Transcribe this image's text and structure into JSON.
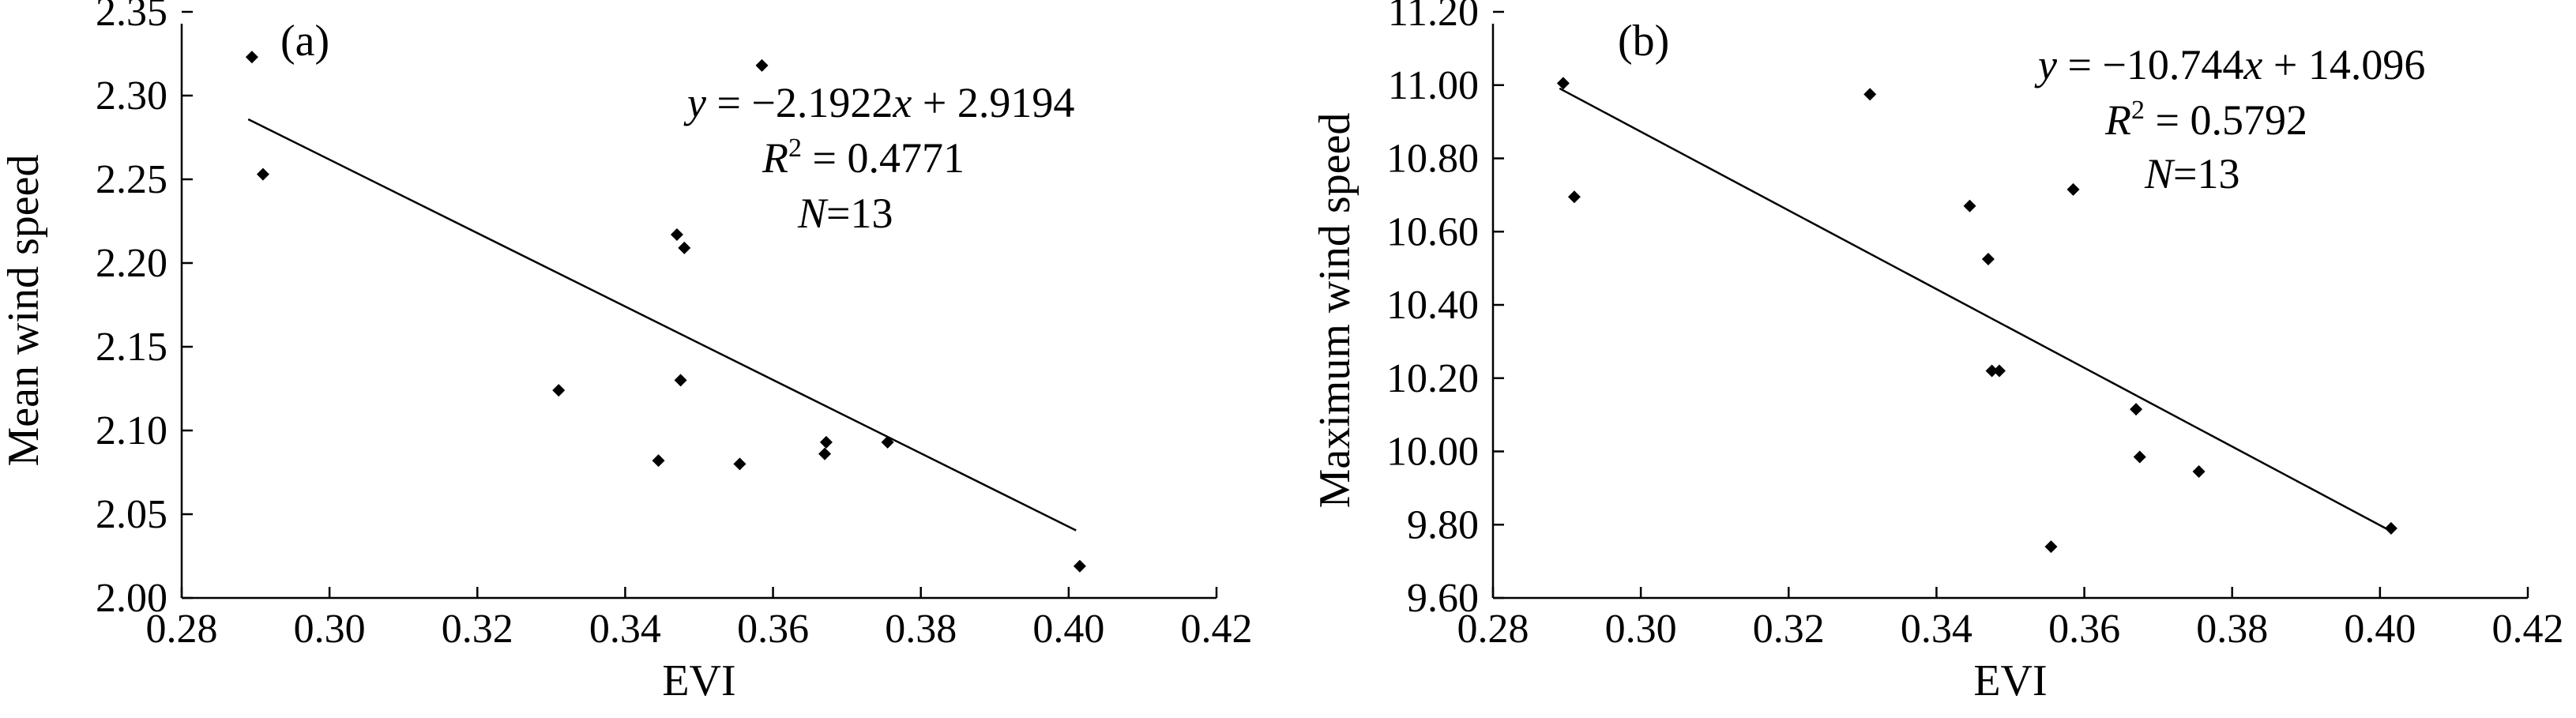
{
  "chart_data": [
    {
      "type": "scatter",
      "panel_label": "(a)",
      "xlabel": "EVI",
      "ylabel": "Mean wind speed",
      "xlim": [
        0.28,
        0.42
      ],
      "ylim": [
        2.0,
        2.35
      ],
      "xticks": [
        "0.28",
        "0.30",
        "0.32",
        "0.34",
        "0.36",
        "0.38",
        "0.40",
        "0.42"
      ],
      "yticks": [
        "2.00",
        "2.05",
        "2.10",
        "2.15",
        "2.20",
        "2.25",
        "2.30",
        "2.35"
      ],
      "points": [
        {
          "x": 0.2895,
          "y": 2.323
        },
        {
          "x": 0.291,
          "y": 2.253
        },
        {
          "x": 0.331,
          "y": 2.124
        },
        {
          "x": 0.3445,
          "y": 2.082
        },
        {
          "x": 0.347,
          "y": 2.217
        },
        {
          "x": 0.348,
          "y": 2.209
        },
        {
          "x": 0.3475,
          "y": 2.13
        },
        {
          "x": 0.3555,
          "y": 2.08
        },
        {
          "x": 0.3585,
          "y": 2.318
        },
        {
          "x": 0.367,
          "y": 2.086
        },
        {
          "x": 0.3672,
          "y": 2.093
        },
        {
          "x": 0.3755,
          "y": 2.093
        },
        {
          "x": 0.4015,
          "y": 2.019
        }
      ],
      "fit": {
        "slope": -2.1922,
        "intercept": 2.9194,
        "x_range": [
          0.289,
          0.401
        ]
      },
      "annotation": {
        "eq_y": "y",
        "eq_rest": " = −2.1922",
        "eq_x": "x",
        "eq_tail": " + 2.9194",
        "r2_R": "R",
        "r2_sup": "2",
        "r2_rest": " = 0.4771",
        "n_N": "N",
        "n_rest": "=13"
      }
    },
    {
      "type": "scatter",
      "panel_label": "(b)",
      "xlabel": "EVI",
      "ylabel": "Maximum wind speed",
      "xlim": [
        0.28,
        0.42
      ],
      "ylim": [
        9.6,
        11.2
      ],
      "xticks": [
        "0.28",
        "0.30",
        "0.32",
        "0.34",
        "0.36",
        "0.38",
        "0.40",
        "0.42"
      ],
      "yticks": [
        "9.60",
        "9.80",
        "10.00",
        "10.20",
        "10.40",
        "10.60",
        "10.80",
        "11.00",
        "11.20"
      ],
      "points": [
        {
          "x": 0.2895,
          "y": 11.005
        },
        {
          "x": 0.291,
          "y": 10.695
        },
        {
          "x": 0.331,
          "y": 10.975
        },
        {
          "x": 0.3445,
          "y": 10.67
        },
        {
          "x": 0.347,
          "y": 10.525
        },
        {
          "x": 0.3475,
          "y": 10.22
        },
        {
          "x": 0.3485,
          "y": 10.22
        },
        {
          "x": 0.3555,
          "y": 9.74
        },
        {
          "x": 0.3585,
          "y": 10.715
        },
        {
          "x": 0.367,
          "y": 10.115
        },
        {
          "x": 0.3675,
          "y": 9.985
        },
        {
          "x": 0.3755,
          "y": 9.945
        },
        {
          "x": 0.4015,
          "y": 9.79
        }
      ],
      "fit": {
        "slope": -10.744,
        "intercept": 14.096,
        "x_range": [
          0.289,
          0.401
        ]
      },
      "annotation": {
        "eq_y": "y",
        "eq_rest": " = −10.744",
        "eq_x": "x",
        "eq_tail": " + 14.096",
        "r2_R": "R",
        "r2_sup": "2",
        "r2_rest": " = 0.5792",
        "n_N": "N",
        "n_rest": "=13"
      }
    }
  ]
}
